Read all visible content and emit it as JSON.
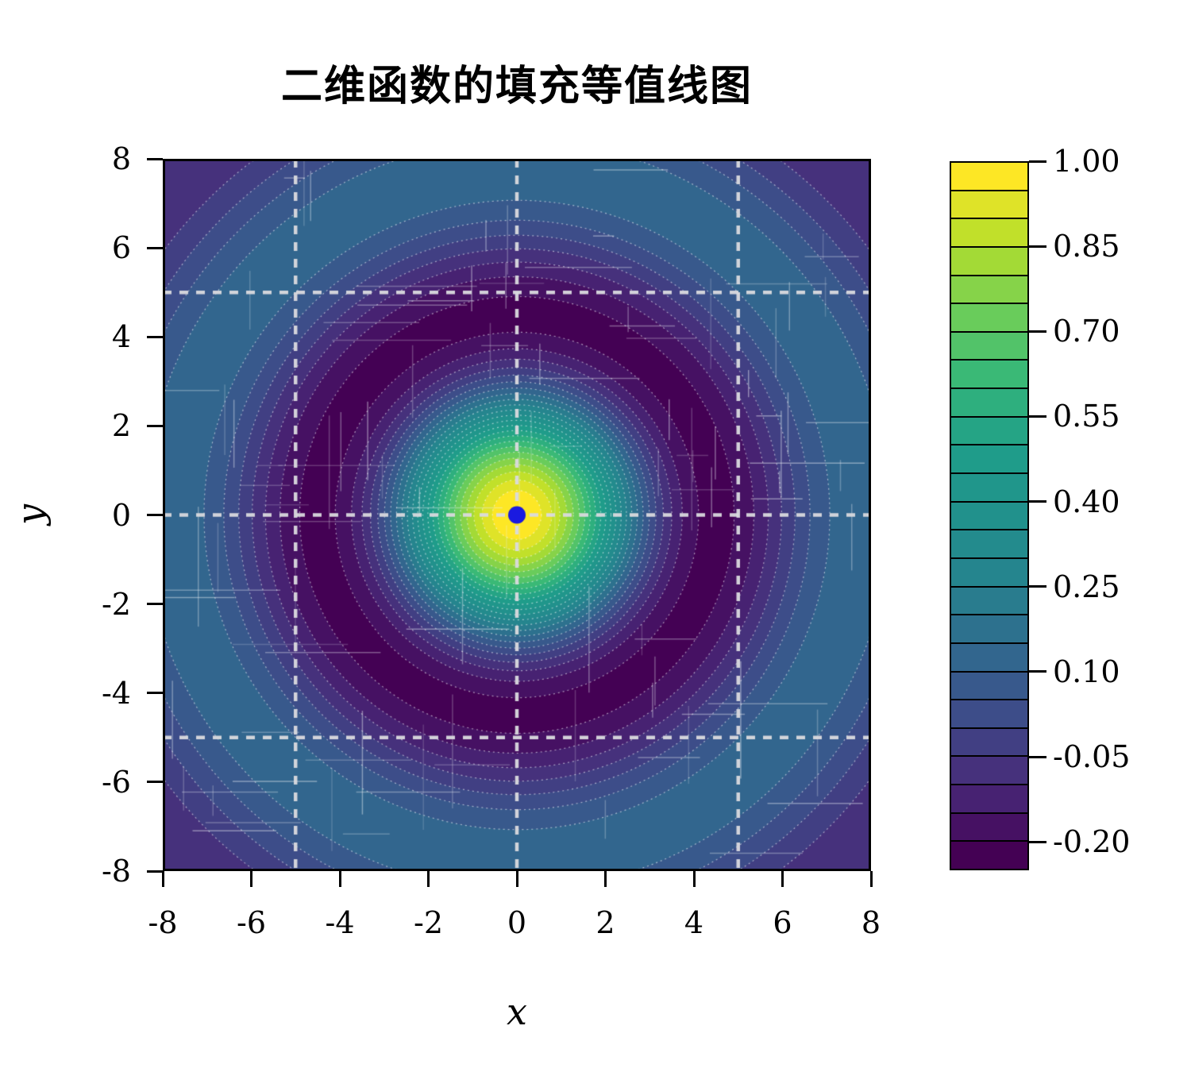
{
  "chart_data": {
    "type": "filled_contour",
    "title": "二维函数的填充等值线图",
    "xlabel": "x",
    "ylabel": "y",
    "function": "z = sin(r)/r, r = sqrt(x^2 + y^2)",
    "x_range": [
      -8,
      8
    ],
    "y_range": [
      -8,
      8
    ],
    "x_ticks": [
      -8,
      -6,
      -4,
      -2,
      0,
      2,
      4,
      6,
      8
    ],
    "y_ticks": [
      -8,
      -6,
      -4,
      -2,
      0,
      2,
      4,
      6,
      8
    ],
    "levels_min": -0.25,
    "levels_max": 1.0,
    "level_step": 0.05,
    "n_bands": 25,
    "colormap": "viridis",
    "colormap_stops": [
      "#440154",
      "#482878",
      "#3e4a89",
      "#31688e",
      "#26828e",
      "#21918c",
      "#1f9e89",
      "#35b779",
      "#6ece58",
      "#b5de2b",
      "#fde725"
    ],
    "colorbar_ticks": [
      1.0,
      0.85,
      0.7,
      0.55,
      0.4,
      0.25,
      0.1,
      -0.05,
      -0.2
    ],
    "colorbar_tick_labels": [
      "1.00",
      "0.85",
      "0.70",
      "0.55",
      "0.40",
      "0.25",
      "0.10",
      "-0.05",
      "-0.20"
    ],
    "gridlines": {
      "x": [
        -5,
        0,
        5
      ],
      "y": [
        -5,
        0,
        5
      ],
      "style": "dashed",
      "color": "#dadade"
    },
    "contour_lines": {
      "style": "dotted",
      "color": "#ffffff"
    },
    "center_marker": {
      "x": 0,
      "y": 0,
      "shape": "circle",
      "color": "#1a1ae0"
    }
  }
}
